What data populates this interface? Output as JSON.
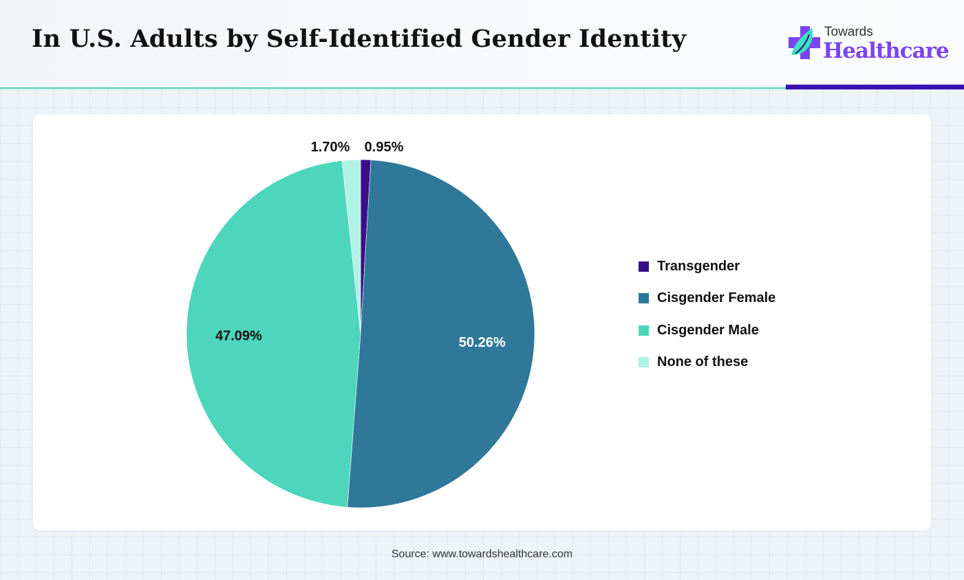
{
  "header": {
    "title": "In U.S. Adults by Self-Identified Gender Identity"
  },
  "logo": {
    "line1": "Towards",
    "line2": "Healthcare"
  },
  "chart_data": {
    "type": "pie",
    "title": "In U.S. Adults by Self-Identified Gender Identity",
    "start": "top, clockwise",
    "legend_position": "right",
    "slices": [
      {
        "label": "Transgender",
        "value": 0.95,
        "display": "0.95%",
        "color": "#3b0f8c"
      },
      {
        "label": "Cisgender Female",
        "value": 50.26,
        "display": "50.26%",
        "color": "#2f7899"
      },
      {
        "label": "Cisgender Male",
        "value": 47.09,
        "display": "47.09%",
        "color": "#4dd6bc"
      },
      {
        "label": "None of these",
        "value": 1.7,
        "display": "1.70%",
        "color": "#b1f2e6"
      }
    ]
  },
  "footer": {
    "source": "Source: www.towardshealthcare.com"
  }
}
